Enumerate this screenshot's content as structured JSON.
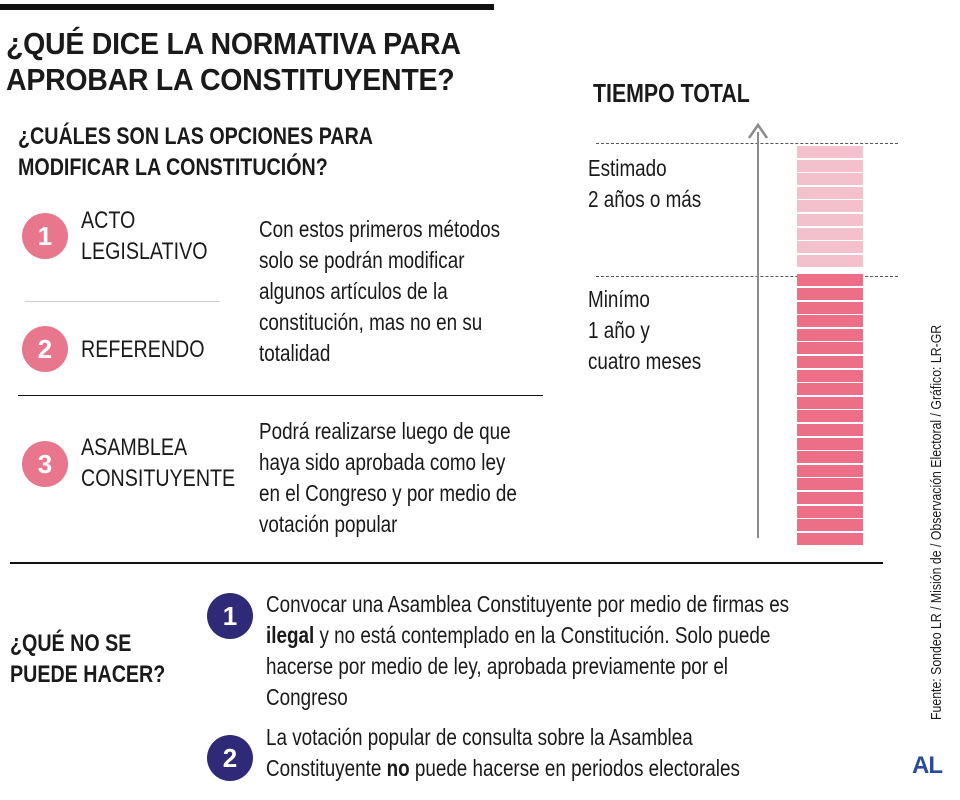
{
  "title": {
    "line1": "¿QUÉ DICE LA NORMATIVA PARA",
    "line2": "APROBAR LA CONSTITUYENTE?"
  },
  "options_section": {
    "heading_line1": "¿CUÁLES SON LAS OPCIONES PARA",
    "heading_line2": "MODIFICAR LA CONSTITUCIÓN?",
    "items": [
      {
        "number": "1",
        "name_line1": "ACTO",
        "name_line2": "LEGISLATIVO"
      },
      {
        "number": "2",
        "name_line1": "REFERENDO",
        "name_line2": ""
      },
      {
        "number": "3",
        "name_line1": "ASAMBLEA",
        "name_line2": "CONSITUYENTE"
      }
    ],
    "desc_1_2": [
      "Con estos primeros métodos",
      "solo se podrán modificar",
      "algunos artículos de la",
      "constitución, mas no en su",
      "totalidad"
    ],
    "desc_3": [
      "Podrá realizarse luego de que",
      "haya sido aprobada como ley",
      "en el Congreso y por medio de",
      "votación popular"
    ]
  },
  "time_section": {
    "title": "TIEMPO TOTAL",
    "estimated_line1": "Estimado",
    "estimated_line2": "2 años o más",
    "minimum_line1": "Minímo",
    "minimum_line2": "1 año y",
    "minimum_line3": "cuatro meses",
    "light_segments": 9,
    "dark_segments": 20,
    "colors": {
      "light": "#f3c1cb",
      "dark": "#ec6f87"
    }
  },
  "prohibited_section": {
    "heading_line1": "¿QUÉ NO SE",
    "heading_line2": "PUEDE HACER?",
    "item1": {
      "number": "1",
      "line1": "Convocar una Asamblea Constituyente por medio de firmas es",
      "line2_bold": "ilegal",
      "line2_rest": " y no está contemplado en la Constitución. Solo puede",
      "line3": "hacerse por medio de ley, aprobada previamente por el",
      "line4": "Congreso"
    },
    "item2": {
      "number": "2",
      "line1": "La votación popular de consulta sobre la Asamblea",
      "line2_pre": "Constituyente ",
      "line2_bold": "no",
      "line2_rest": " puede hacerse en periodos electorales"
    }
  },
  "source": "Fuente: Sondeo LR / Misión de / Observación Electoral / Gráfico: LR-GR",
  "logo": "AL",
  "colors": {
    "pink": "#e8768c",
    "navy": "#2e2a78",
    "logo": "#2a4a9a"
  }
}
